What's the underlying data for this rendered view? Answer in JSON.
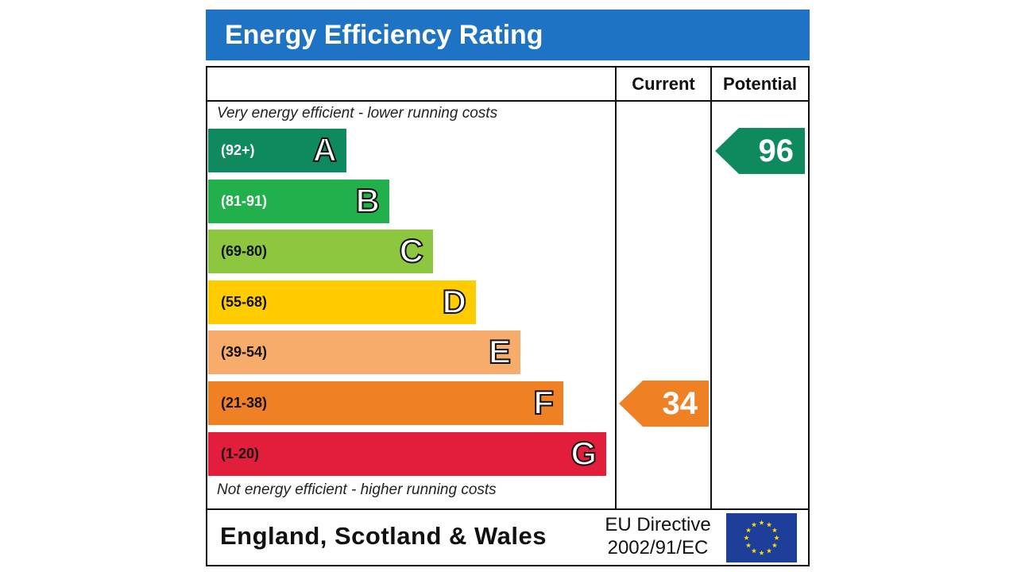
{
  "title": "Energy Efficiency Rating",
  "columns": {
    "current": "Current",
    "potential": "Potential"
  },
  "notes": {
    "top": "Very energy efficient - lower running costs",
    "bottom": "Not energy efficient - higher running costs"
  },
  "footer": {
    "region": "England, Scotland & Wales",
    "directive_line1": "EU Directive",
    "directive_line2": "2002/91/EC"
  },
  "chart_data": {
    "type": "bar",
    "title": "Energy Efficiency Rating",
    "categories": [
      "A",
      "B",
      "C",
      "D",
      "E",
      "F",
      "G"
    ],
    "ranges": [
      "(92+)",
      "(81-91)",
      "(69-80)",
      "(55-68)",
      "(39-54)",
      "(21-38)",
      "(1-20)"
    ],
    "colors": [
      "#0f8a5f",
      "#21b04b",
      "#8dc63f",
      "#ffcc00",
      "#f7ac6b",
      "#ef8023",
      "#e31d3c"
    ],
    "range_text_colors": [
      "#ffffff",
      "#ffffff",
      "#111111",
      "#111111",
      "#111111",
      "#111111",
      "#111111"
    ],
    "current": {
      "value": 34,
      "band": "F",
      "color": "#ef8023"
    },
    "potential": {
      "value": 96,
      "band": "A",
      "color": "#0f8a5f"
    }
  }
}
